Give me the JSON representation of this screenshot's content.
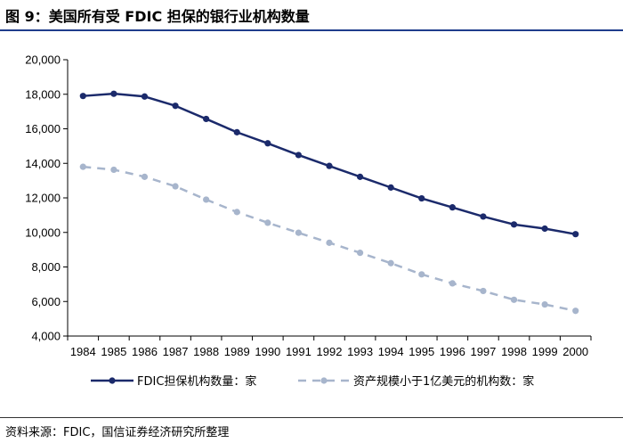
{
  "title": "图 9：美国所有受 FDIC 担保的银行业机构数量",
  "source": "资料来源：FDIC，国信证券经济研究所整理",
  "chart_data": {
    "type": "line",
    "categories": [
      "1984",
      "1985",
      "1986",
      "1987",
      "1988",
      "1989",
      "1990",
      "1991",
      "1992",
      "1993",
      "1994",
      "1995",
      "1996",
      "1997",
      "1998",
      "1999",
      "2000"
    ],
    "ylim": [
      4000,
      20000
    ],
    "yticks": [
      4000,
      6000,
      8000,
      10000,
      12000,
      14000,
      16000,
      18000,
      20000
    ],
    "ytick_labels": [
      "4,000",
      "6,000",
      "8,000",
      "10,000",
      "12,000",
      "14,000",
      "16,000",
      "18,000",
      "20,000"
    ],
    "series": [
      {
        "name": "FDIC担保机构数量：家",
        "color": "#1b2a6b",
        "style": "solid",
        "values": [
          17900,
          18030,
          17870,
          17330,
          16570,
          15800,
          15160,
          14480,
          13850,
          13220,
          12600,
          11970,
          11450,
          10920,
          10460,
          10220,
          9900
        ]
      },
      {
        "name": "资产规模小于1亿美元的机构数：家",
        "color": "#a7b5cc",
        "style": "dashed",
        "values": [
          13800,
          13630,
          13220,
          12670,
          11900,
          11180,
          10560,
          9980,
          9400,
          8820,
          8220,
          7570,
          7050,
          6610,
          6100,
          5830,
          5460
        ]
      }
    ]
  }
}
